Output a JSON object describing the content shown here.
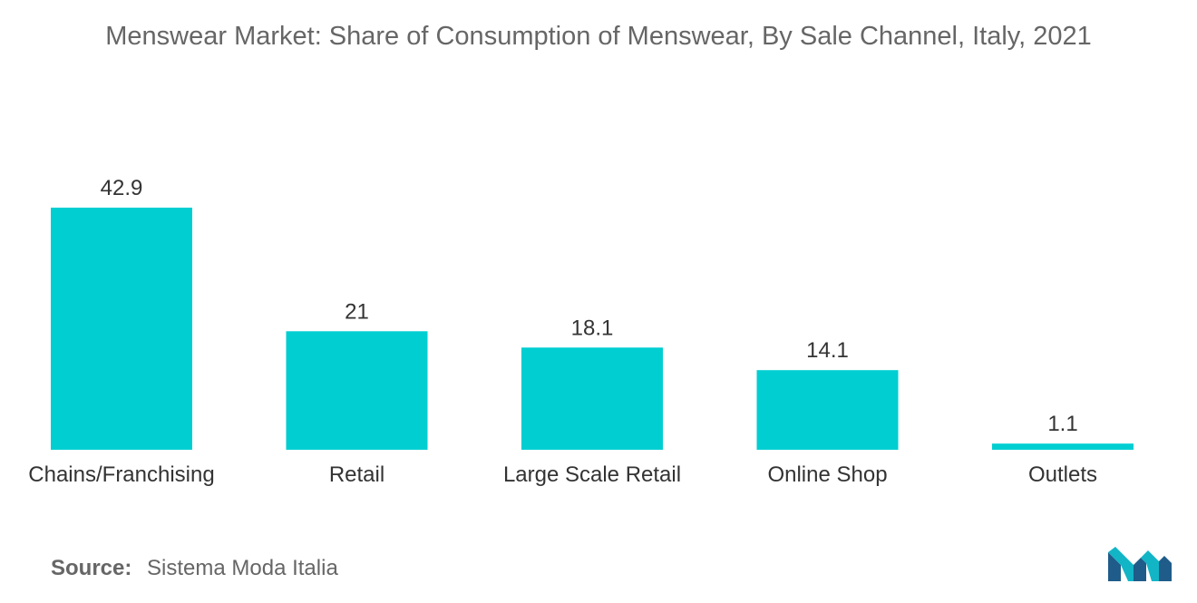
{
  "chart_data": {
    "type": "bar",
    "title": "Menswear Market: Share of Consumption of Menswear, By Sale Channel, Italy, 2021",
    "categories": [
      "Chains/Franchising",
      "Retail",
      "Large Scale Retail",
      "Online Shop",
      "Outlets"
    ],
    "values": [
      42.9,
      21,
      18.1,
      14.1,
      1.1
    ],
    "data_labels": [
      "42.9",
      "21",
      "18.1",
      "14.1",
      "1.1"
    ],
    "xlabel": "",
    "ylabel": "",
    "ylim": [
      0,
      42.9
    ],
    "grid": false,
    "legend": "none",
    "bar_color": "#00CED1"
  },
  "footer": {
    "source_label": "Source:",
    "source_text": "Sistema Moda Italia"
  },
  "logo": {
    "icon": "mordor-intelligence-logo-icon",
    "colors": [
      "#1F5C8A",
      "#12B5C6"
    ]
  }
}
